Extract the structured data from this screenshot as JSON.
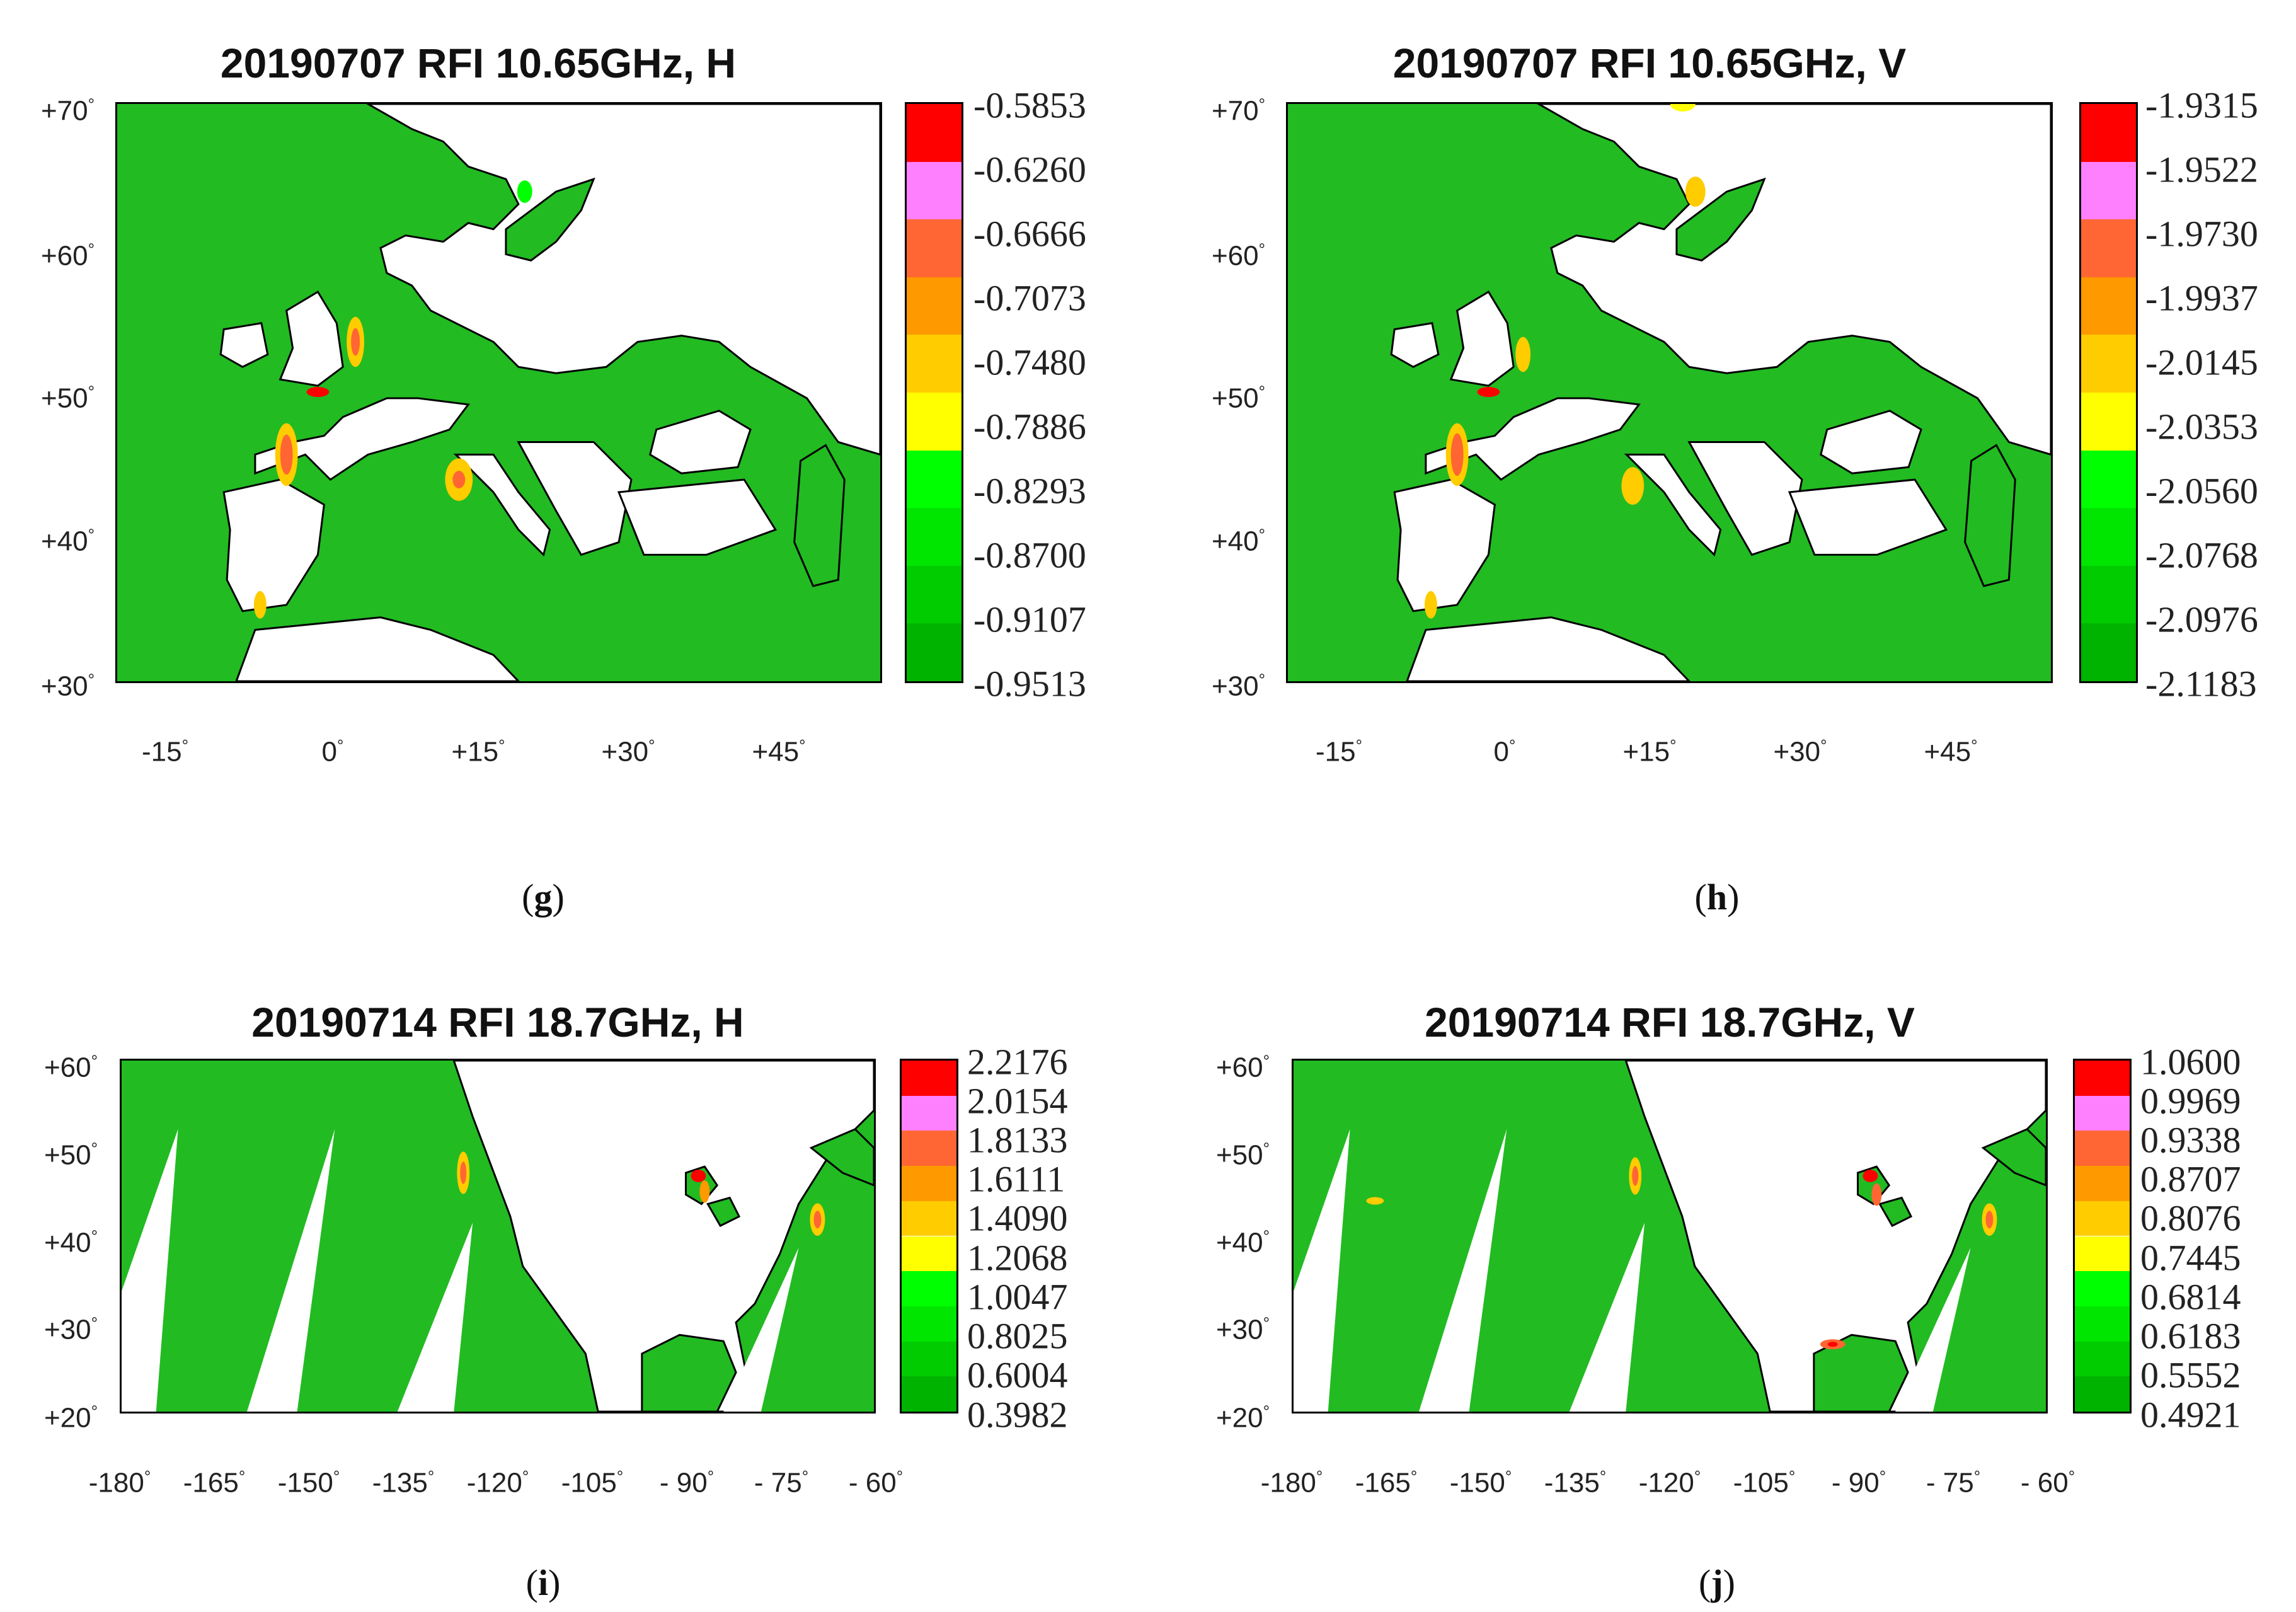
{
  "panels": [
    {
      "id": "g",
      "title": "20190707 RFI 10.65GHz, H",
      "caption_letter": "g",
      "y_ticks": [
        "+70",
        "+60",
        "+50",
        "+40",
        "+30"
      ],
      "x_ticks": [
        "-15",
        "0",
        "+15",
        "+30",
        "+45"
      ],
      "colorbar_labels": [
        "-0.5853",
        "-0.6260",
        "-0.6666",
        "-0.7073",
        "-0.7480",
        "-0.7886",
        "-0.8293",
        "-0.8700",
        "-0.9107",
        "-0.9513"
      ],
      "region": "europe"
    },
    {
      "id": "h",
      "title": "20190707 RFI 10.65GHz, V",
      "caption_letter": "h",
      "y_ticks": [
        "+70",
        "+60",
        "+50",
        "+40",
        "+30"
      ],
      "x_ticks": [
        "-15",
        "0",
        "+15",
        "+30",
        "+45"
      ],
      "colorbar_labels": [
        "-1.9315",
        "-1.9522",
        "-1.9730",
        "-1.9937",
        "-2.0145",
        "-2.0353",
        "-2.0560",
        "-2.0768",
        "-2.0976",
        "-2.1183"
      ],
      "region": "europe"
    },
    {
      "id": "i",
      "title": "20190714 RFI 18.7GHz, H",
      "caption_letter": "i",
      "y_ticks": [
        "+60",
        "+50",
        "+40",
        "+30",
        "+20"
      ],
      "x_ticks": [
        "-180",
        "-165",
        "-150",
        "-135",
        "-120",
        "-105",
        "- 90",
        "- 75",
        "- 60"
      ],
      "colorbar_labels": [
        "2.2176",
        "2.0154",
        "1.8133",
        "1.6111",
        "1.4090",
        "1.2068",
        "1.0047",
        "0.8025",
        "0.6004",
        "0.3982"
      ],
      "region": "namerica"
    },
    {
      "id": "j",
      "title": "20190714 RFI 18.7GHz, V",
      "caption_letter": "j",
      "y_ticks": [
        "+60",
        "+50",
        "+40",
        "+30",
        "+20"
      ],
      "x_ticks": [
        "-180",
        "-165",
        "-150",
        "-135",
        "-120",
        "-105",
        "- 90",
        "- 75",
        "- 60"
      ],
      "colorbar_labels": [
        "1.0600",
        "0.9969",
        "0.9338",
        "0.8707",
        "0.8076",
        "0.7445",
        "0.6814",
        "0.6183",
        "0.5552",
        "0.4921"
      ],
      "region": "namerica"
    }
  ],
  "colorbar_colors": [
    "#ff0000",
    "#ff80ff",
    "#ff6633",
    "#ff9900",
    "#ffcc00",
    "#ffff00",
    "#00ff00",
    "#00e600",
    "#00cc00",
    "#00b300"
  ],
  "map_colors": {
    "land": "#ffffff",
    "ocean": "#22bb22",
    "coast": "#000000"
  }
}
